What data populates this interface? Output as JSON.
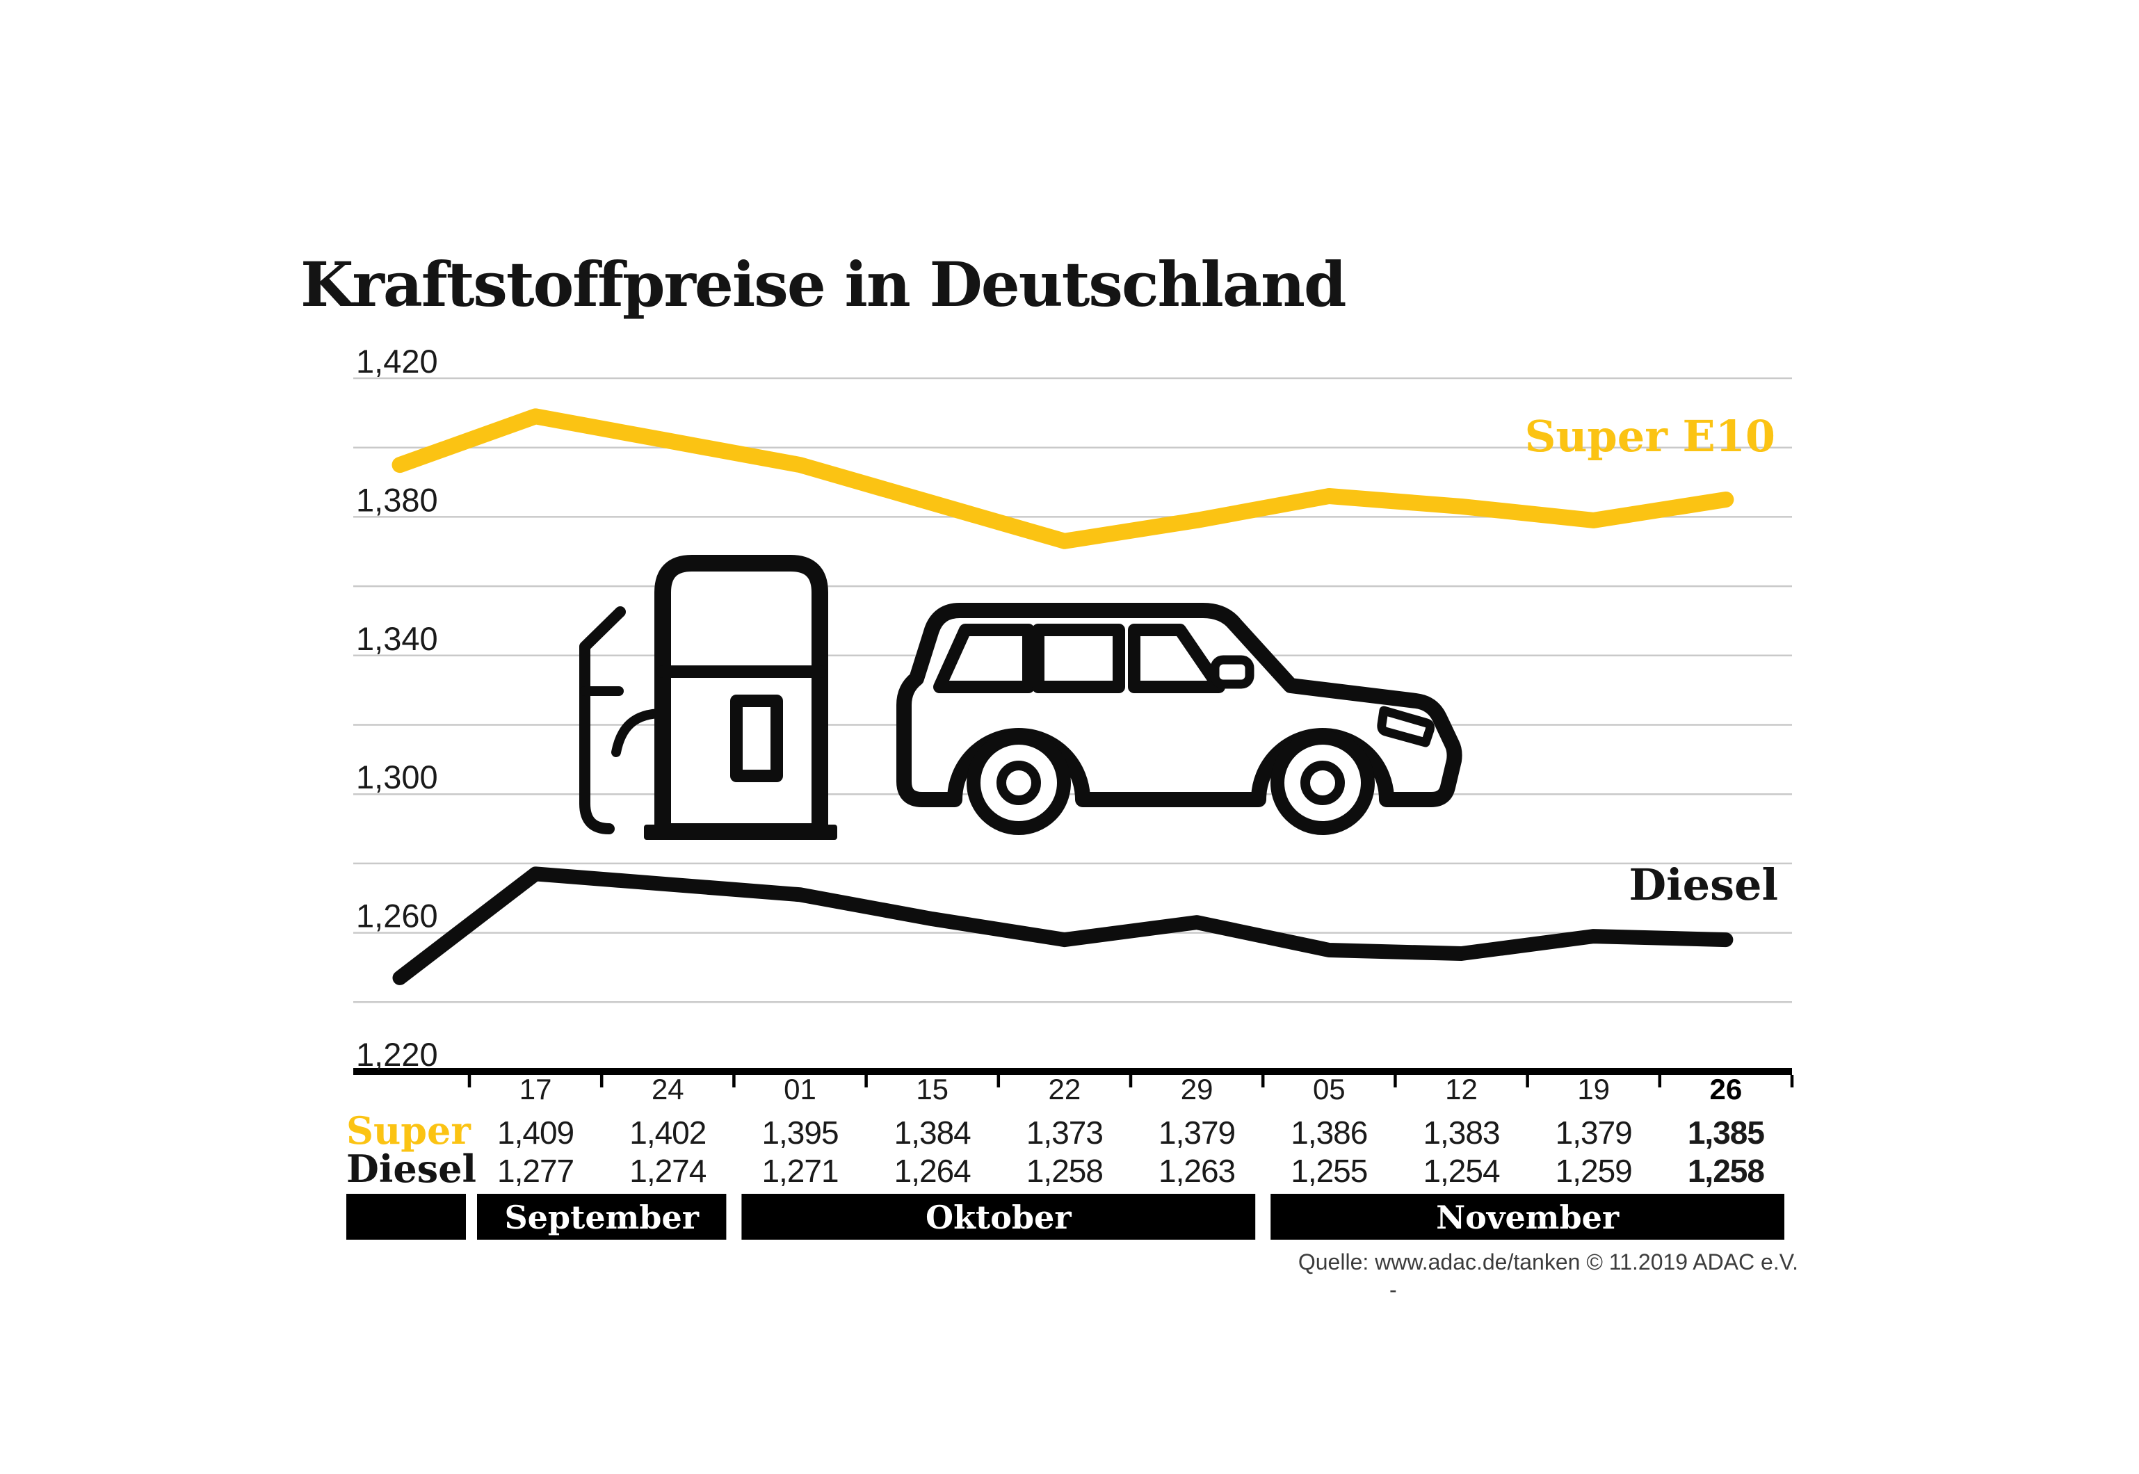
{
  "title": "Kraftstoffpreise in Deutschland",
  "series_labels": {
    "super": "Super E10",
    "diesel": "Diesel"
  },
  "table": {
    "row_labels": {
      "super": "Super",
      "diesel": "Diesel"
    }
  },
  "source_note": "Quelle: www.adac.de/tanken  © 11.2019  ADAC e.V.",
  "stray_dash": "-",
  "colors": {
    "super_yellow": "#FBC313",
    "diesel_black": "#0d0d0d",
    "grid_gray": "#c9c9c9",
    "axis_black": "#000000",
    "text_dark": "#1a1a1a",
    "band_background": "#000000",
    "band_text": "#ffffff"
  },
  "chart_data": {
    "type": "line",
    "title": "Kraftstoffpreise in Deutschland",
    "grid": "horizontal",
    "legend_position": "inline-right",
    "y_axis": {
      "min": 1220,
      "max": 1420,
      "grid_step": 20,
      "labeled_ticks": [
        1420,
        1380,
        1340,
        1300,
        1260,
        1220
      ],
      "labels": [
        "1,420",
        "1,380",
        "1,340",
        "1,300",
        "1,260",
        "1,220"
      ]
    },
    "x_tick_labels": [
      "17",
      "24",
      "01",
      "15",
      "22",
      "29",
      "05",
      "12",
      "19",
      "26"
    ],
    "months": [
      {
        "label": "September",
        "first_col": 0,
        "last_col": 1
      },
      {
        "label": "Oktober",
        "first_col": 2,
        "last_col": 5
      },
      {
        "label": "November",
        "first_col": 6,
        "last_col": 9
      }
    ],
    "series": [
      {
        "id": "super",
        "legend": "Super E10",
        "table_label": "Super",
        "color": "#FBC313",
        "lead_in_value": 1395,
        "values": [
          1409,
          1402,
          1395,
          1384,
          1373,
          1379,
          1386,
          1383,
          1379,
          1385
        ],
        "display_values": [
          "1,409",
          "1,402",
          "1,395",
          "1,384",
          "1,373",
          "1,379",
          "1,386",
          "1,383",
          "1,379",
          "1,385"
        ]
      },
      {
        "id": "diesel",
        "legend": "Diesel",
        "table_label": "Diesel",
        "color": "#0d0d0d",
        "lead_in_value": 1247,
        "values": [
          1277,
          1274,
          1271,
          1264,
          1258,
          1263,
          1255,
          1254,
          1259,
          1258
        ],
        "display_values": [
          "1,277",
          "1,274",
          "1,271",
          "1,264",
          "1,258",
          "1,263",
          "1,255",
          "1,254",
          "1,259",
          "1,258"
        ]
      }
    ]
  }
}
